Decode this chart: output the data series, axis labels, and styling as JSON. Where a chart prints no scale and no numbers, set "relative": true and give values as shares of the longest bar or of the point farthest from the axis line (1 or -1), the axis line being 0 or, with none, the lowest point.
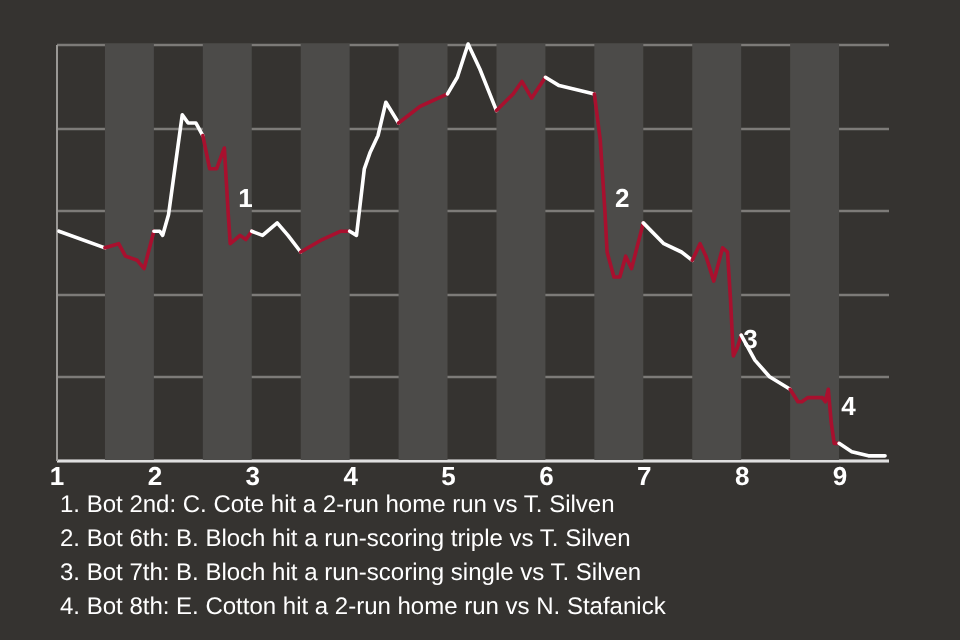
{
  "chart_data": {
    "type": "line",
    "relative": true,
    "grid": "y",
    "xlim": [
      1,
      9.5
    ],
    "xticks": [
      1,
      2,
      3,
      4,
      5,
      6,
      7,
      8,
      9
    ],
    "series": [
      {
        "color": "#ffffff",
        "x": [
          1.03,
          1.5
        ],
        "values": [
          0.55,
          0.51
        ]
      },
      {
        "color": "#a8102e",
        "x": [
          1.5,
          1.64,
          1.71,
          1.83,
          1.9,
          2
        ],
        "values": [
          0.51,
          0.52,
          0.49,
          0.48,
          0.46,
          0.55
        ]
      },
      {
        "color": "#ffffff",
        "x": [
          2,
          2.06,
          2.09,
          2.15,
          2.29,
          2.35,
          2.43,
          2.5
        ],
        "values": [
          0.55,
          0.55,
          0.54,
          0.59,
          0.83,
          0.81,
          0.81,
          0.78
        ]
      },
      {
        "color": "#a8102e",
        "x": [
          2.5,
          2.57,
          2.64,
          2.72,
          2.76,
          2.78,
          2.83,
          2.88,
          2.94,
          3
        ],
        "values": [
          0.78,
          0.7,
          0.7,
          0.75,
          0.59,
          0.52,
          0.53,
          0.54,
          0.53,
          0.55
        ]
      },
      {
        "color": "#ffffff",
        "x": [
          3,
          3.11,
          3.26,
          3.37,
          3.5
        ],
        "values": [
          0.55,
          0.54,
          0.57,
          0.54,
          0.5
        ]
      },
      {
        "color": "#a8102e",
        "x": [
          3.5,
          3.72,
          3.91,
          4
        ],
        "values": [
          0.5,
          0.53,
          0.55,
          0.55
        ]
      },
      {
        "color": "#ffffff",
        "x": [
          4,
          4.07,
          4.15,
          4.21,
          4.29,
          4.37,
          4.5
        ],
        "values": [
          0.55,
          0.54,
          0.7,
          0.74,
          0.78,
          0.86,
          0.81
        ]
      },
      {
        "color": "#a8102e",
        "x": [
          4.5,
          4.72,
          5
        ],
        "values": [
          0.81,
          0.85,
          0.88
        ]
      },
      {
        "color": "#ffffff",
        "x": [
          5,
          5.1,
          5.21,
          5.33,
          5.5
        ],
        "values": [
          0.88,
          0.92,
          1,
          0.94,
          0.84
        ]
      },
      {
        "color": "#a8102e",
        "x": [
          5.5,
          5.67,
          5.76,
          5.86,
          6
        ],
        "values": [
          0.84,
          0.88,
          0.91,
          0.87,
          0.92
        ]
      },
      {
        "color": "#ffffff",
        "x": [
          6,
          6.14,
          6.5
        ],
        "values": [
          0.92,
          0.9,
          0.88
        ]
      },
      {
        "color": "#a8102e",
        "x": [
          6.5,
          6.56,
          6.61,
          6.63,
          6.7,
          6.76,
          6.82,
          6.88,
          7
        ],
        "values": [
          0.88,
          0.77,
          0.59,
          0.5,
          0.44,
          0.44,
          0.49,
          0.46,
          0.57
        ]
      },
      {
        "color": "#ffffff",
        "x": [
          7,
          7.21,
          7.39,
          7.5
        ],
        "values": [
          0.57,
          0.52,
          0.5,
          0.48
        ]
      },
      {
        "color": "#a8102e",
        "x": [
          7.5,
          7.58,
          7.64,
          7.72,
          7.81,
          7.86,
          7.89,
          7.92,
          7.96,
          8
        ],
        "values": [
          0.48,
          0.52,
          0.49,
          0.43,
          0.51,
          0.5,
          0.39,
          0.25,
          0.27,
          0.3
        ]
      },
      {
        "color": "#ffffff",
        "x": [
          8,
          8.14,
          8.29,
          8.5
        ],
        "values": [
          0.3,
          0.24,
          0.2,
          0.17
        ]
      },
      {
        "color": "#a8102e",
        "x": [
          8.5,
          8.58,
          8.62,
          8.68,
          8.83,
          8.86,
          8.89,
          8.92,
          8.95,
          9
        ],
        "values": [
          0.17,
          0.14,
          0.14,
          0.15,
          0.15,
          0.14,
          0.17,
          0.09,
          0.04,
          0.04
        ]
      },
      {
        "color": "#ffffff",
        "x": [
          9,
          9.13,
          9.3,
          9.47
        ],
        "values": [
          0.04,
          0.02,
          0.01,
          0.01
        ]
      }
    ],
    "bands": [
      {
        "axis": "x",
        "from": 1.5,
        "to": 2,
        "color": "#4c4b49"
      },
      {
        "axis": "x",
        "from": 2.5,
        "to": 3,
        "color": "#4c4b49"
      },
      {
        "axis": "x",
        "from": 3.5,
        "to": 4,
        "color": "#4c4b49"
      },
      {
        "axis": "x",
        "from": 4.5,
        "to": 5,
        "color": "#4c4b49"
      },
      {
        "axis": "x",
        "from": 5.5,
        "to": 6,
        "color": "#4c4b49"
      },
      {
        "axis": "x",
        "from": 6.5,
        "to": 7,
        "color": "#4c4b49"
      },
      {
        "axis": "x",
        "from": 7.5,
        "to": 8,
        "color": "#4c4b49"
      },
      {
        "axis": "x",
        "from": 8.5,
        "to": 9,
        "color": "#4c4b49"
      }
    ],
    "annotations": [
      {
        "text": "1",
        "x": 2.76,
        "y": 0.59
      },
      {
        "text": "2",
        "x": 6.61,
        "y": 0.59
      },
      {
        "text": "3",
        "x": 7.92,
        "y": 0.25
      },
      {
        "text": "4",
        "x": 8.92,
        "y": 0.09
      },
      "1. Bot 2nd: C. Cote hit a 2-run home run vs T. Silven",
      "2. Bot 6th: B. Bloch hit a run-scoring triple vs T. Silven",
      "3. Bot 7th: B. Bloch hit a run-scoring single vs T. Silven",
      "4. Bot 8th: E. Cotton hit a 2-run home run vs N. Stafanick"
    ]
  }
}
